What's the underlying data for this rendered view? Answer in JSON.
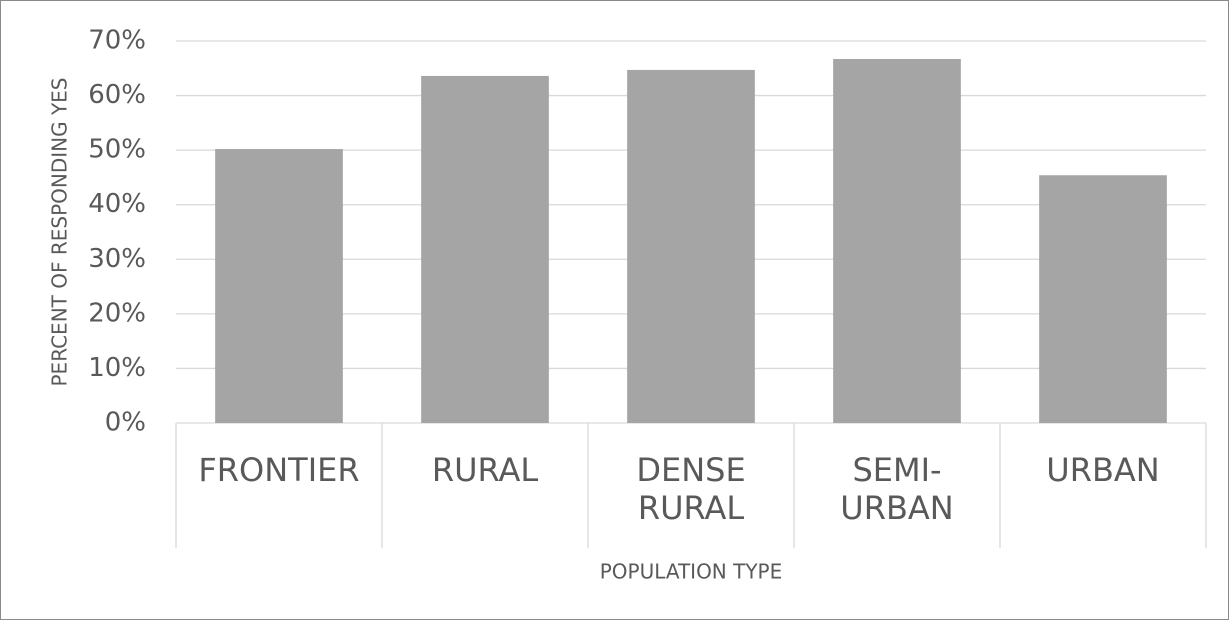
{
  "chart_data": {
    "type": "bar",
    "y_label": "PERCENT OF RESPONDING YES",
    "x_label": "POPULATION TYPE",
    "categories": [
      "FRONTIER",
      "RURAL",
      "DENSE RURAL",
      "SEMI-URBAN",
      "URBAN"
    ],
    "values": [
      50.2,
      63.6,
      64.7,
      66.7,
      45.4
    ],
    "color": "#a5a5a5",
    "ylim": [
      0,
      70
    ],
    "yticks": [
      {
        "value": 0,
        "label": "0%"
      },
      {
        "value": 10,
        "label": "10%"
      },
      {
        "value": 20,
        "label": "20%"
      },
      {
        "value": 30,
        "label": "30%"
      },
      {
        "value": 40,
        "label": "40%"
      },
      {
        "value": 50,
        "label": "50%"
      },
      {
        "value": 60,
        "label": "60%"
      },
      {
        "value": 70,
        "label": "70%"
      }
    ],
    "grid": true
  }
}
